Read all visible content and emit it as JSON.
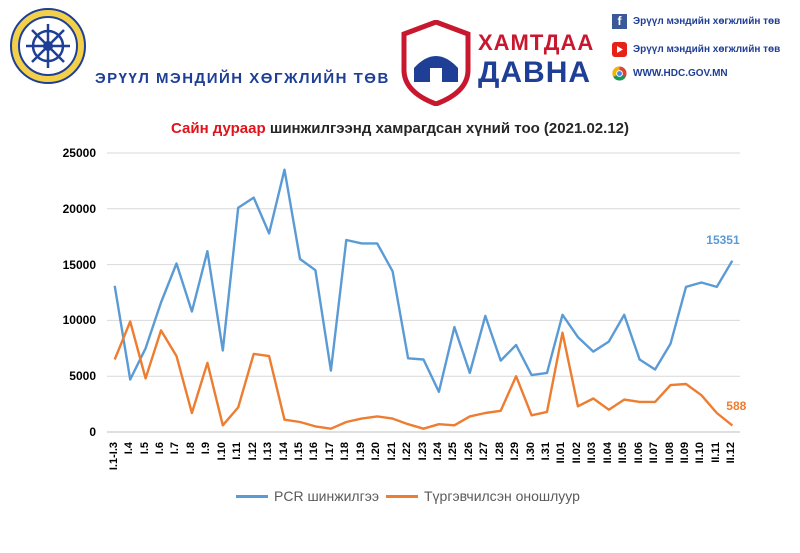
{
  "header": {
    "org_name": "ЭРҮҮЛ МЭНДИЙН ХӨГЖЛИЙН ТӨВ",
    "campaign_line1": "ХАМТДАА",
    "campaign_line2": "ДАВНА",
    "social": [
      {
        "icon": "facebook-icon",
        "label": "Эрүүл мэндийн хөгжлийн төв",
        "color": "#3b5998"
      },
      {
        "icon": "youtube-icon",
        "label": "Эрүүл мэндийн хөгжлийн төв",
        "color": "#e62117"
      },
      {
        "icon": "chrome-icon",
        "label": "WWW.HDC.GOV.MN",
        "color": "#4285f4"
      }
    ]
  },
  "colors": {
    "brand_blue": "#1f3f96",
    "brand_red": "#c8182f",
    "pcr_series": "#5b9bd5",
    "rapid_series": "#ed7d31"
  },
  "chart_data": {
    "type": "line",
    "title_highlight": "Сайн дураар",
    "title_rest": " шинжилгээнд хамрагдсан хүний тоо (2021.02.12)",
    "xlabel": "",
    "ylabel": "",
    "ylim": [
      0,
      25000
    ],
    "yticks": [
      "0",
      "5000",
      "10000",
      "15000",
      "20000",
      "25000"
    ],
    "grid": true,
    "legend_position": "bottom",
    "categories": [
      "I.1-I.3",
      "I.4",
      "I.5",
      "I.6",
      "I.7",
      "I.8",
      "I.9",
      "I.10",
      "I.11",
      "I.12",
      "I.13",
      "I.14",
      "I.15",
      "I.16",
      "I.17",
      "I.18",
      "I.19",
      "I.20",
      "I.21",
      "I.22",
      "I.23",
      "I.24",
      "I.25",
      "I.26",
      "I.27",
      "I.28",
      "I.29",
      "I.30",
      "I.31",
      "II.01",
      "II.02",
      "II.03",
      "II.04",
      "II.05",
      "II.06",
      "II.07",
      "II.08",
      "II.09",
      "II.10",
      "II.11",
      "II.12"
    ],
    "series": [
      {
        "name": "PCR шинжилгээ",
        "color": "#5b9bd5",
        "values": [
          13100,
          4700,
          7500,
          11600,
          15100,
          10800,
          16200,
          7300,
          20100,
          21000,
          17800,
          23500,
          15500,
          14500,
          5500,
          17200,
          16900,
          16900,
          14400,
          6600,
          6500,
          3600,
          9400,
          5300,
          10400,
          6400,
          7800,
          5100,
          5300,
          10500,
          8500,
          7200,
          8100,
          10500,
          6500,
          5600,
          7900,
          13000,
          13400,
          13000,
          15351
        ],
        "last_label": "15351"
      },
      {
        "name": "Түргэвчилсэн оношлуур",
        "color": "#ed7d31",
        "values": [
          6500,
          9900,
          4800,
          9100,
          6800,
          1700,
          6200,
          600,
          2200,
          7000,
          6800,
          1100,
          900,
          500,
          300,
          900,
          1200,
          1400,
          1200,
          700,
          300,
          700,
          600,
          1400,
          1700,
          1900,
          5000,
          1500,
          1800,
          8900,
          2300,
          3000,
          2000,
          2900,
          2700,
          2700,
          4200,
          4300,
          3300,
          1700,
          588
        ],
        "last_label": "588"
      }
    ]
  }
}
